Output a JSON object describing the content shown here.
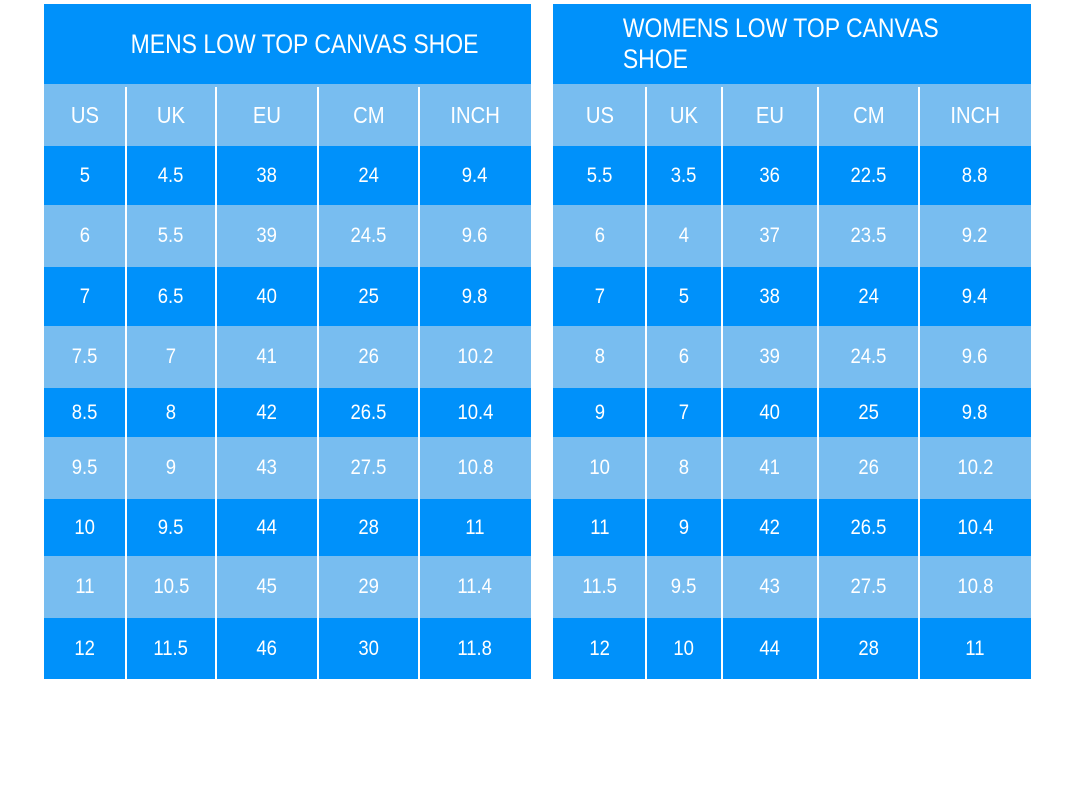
{
  "colors": {
    "dark": "#0091fa",
    "light": "#78bdf0"
  },
  "tables": [
    {
      "title": "MENS LOW TOP CANVAS SHOE",
      "headers": [
        "US",
        "UK",
        "EU",
        "CM",
        "INCH"
      ],
      "rows": [
        [
          "5",
          "4.5",
          "38",
          "24",
          "9.4"
        ],
        [
          "6",
          "5.5",
          "39",
          "24.5",
          "9.6"
        ],
        [
          "7",
          "6.5",
          "40",
          "25",
          "9.8"
        ],
        [
          "7.5",
          "7",
          "41",
          "26",
          "10.2"
        ],
        [
          "8.5",
          "8",
          "42",
          "26.5",
          "10.4"
        ],
        [
          "9.5",
          "9",
          "43",
          "27.5",
          "10.8"
        ],
        [
          "10",
          "9.5",
          "44",
          "28",
          "11"
        ],
        [
          "11",
          "10.5",
          "45",
          "29",
          "11.4"
        ],
        [
          "12",
          "11.5",
          "46",
          "30",
          "11.8"
        ]
      ]
    },
    {
      "title": "WOMENS LOW TOP CANVAS SHOE",
      "headers": [
        "US",
        "UK",
        "EU",
        "CM",
        "INCH"
      ],
      "rows": [
        [
          "5.5",
          "3.5",
          "36",
          "22.5",
          "8.8"
        ],
        [
          "6",
          "4",
          "37",
          "23.5",
          "9.2"
        ],
        [
          "7",
          "5",
          "38",
          "24",
          "9.4"
        ],
        [
          "8",
          "6",
          "39",
          "24.5",
          "9.6"
        ],
        [
          "9",
          "7",
          "40",
          "25",
          "9.8"
        ],
        [
          "10",
          "8",
          "41",
          "26",
          "10.2"
        ],
        [
          "11",
          "9",
          "42",
          "26.5",
          "10.4"
        ],
        [
          "11.5",
          "9.5",
          "43",
          "27.5",
          "10.8"
        ],
        [
          "12",
          "10",
          "44",
          "28",
          "11"
        ]
      ]
    }
  ]
}
